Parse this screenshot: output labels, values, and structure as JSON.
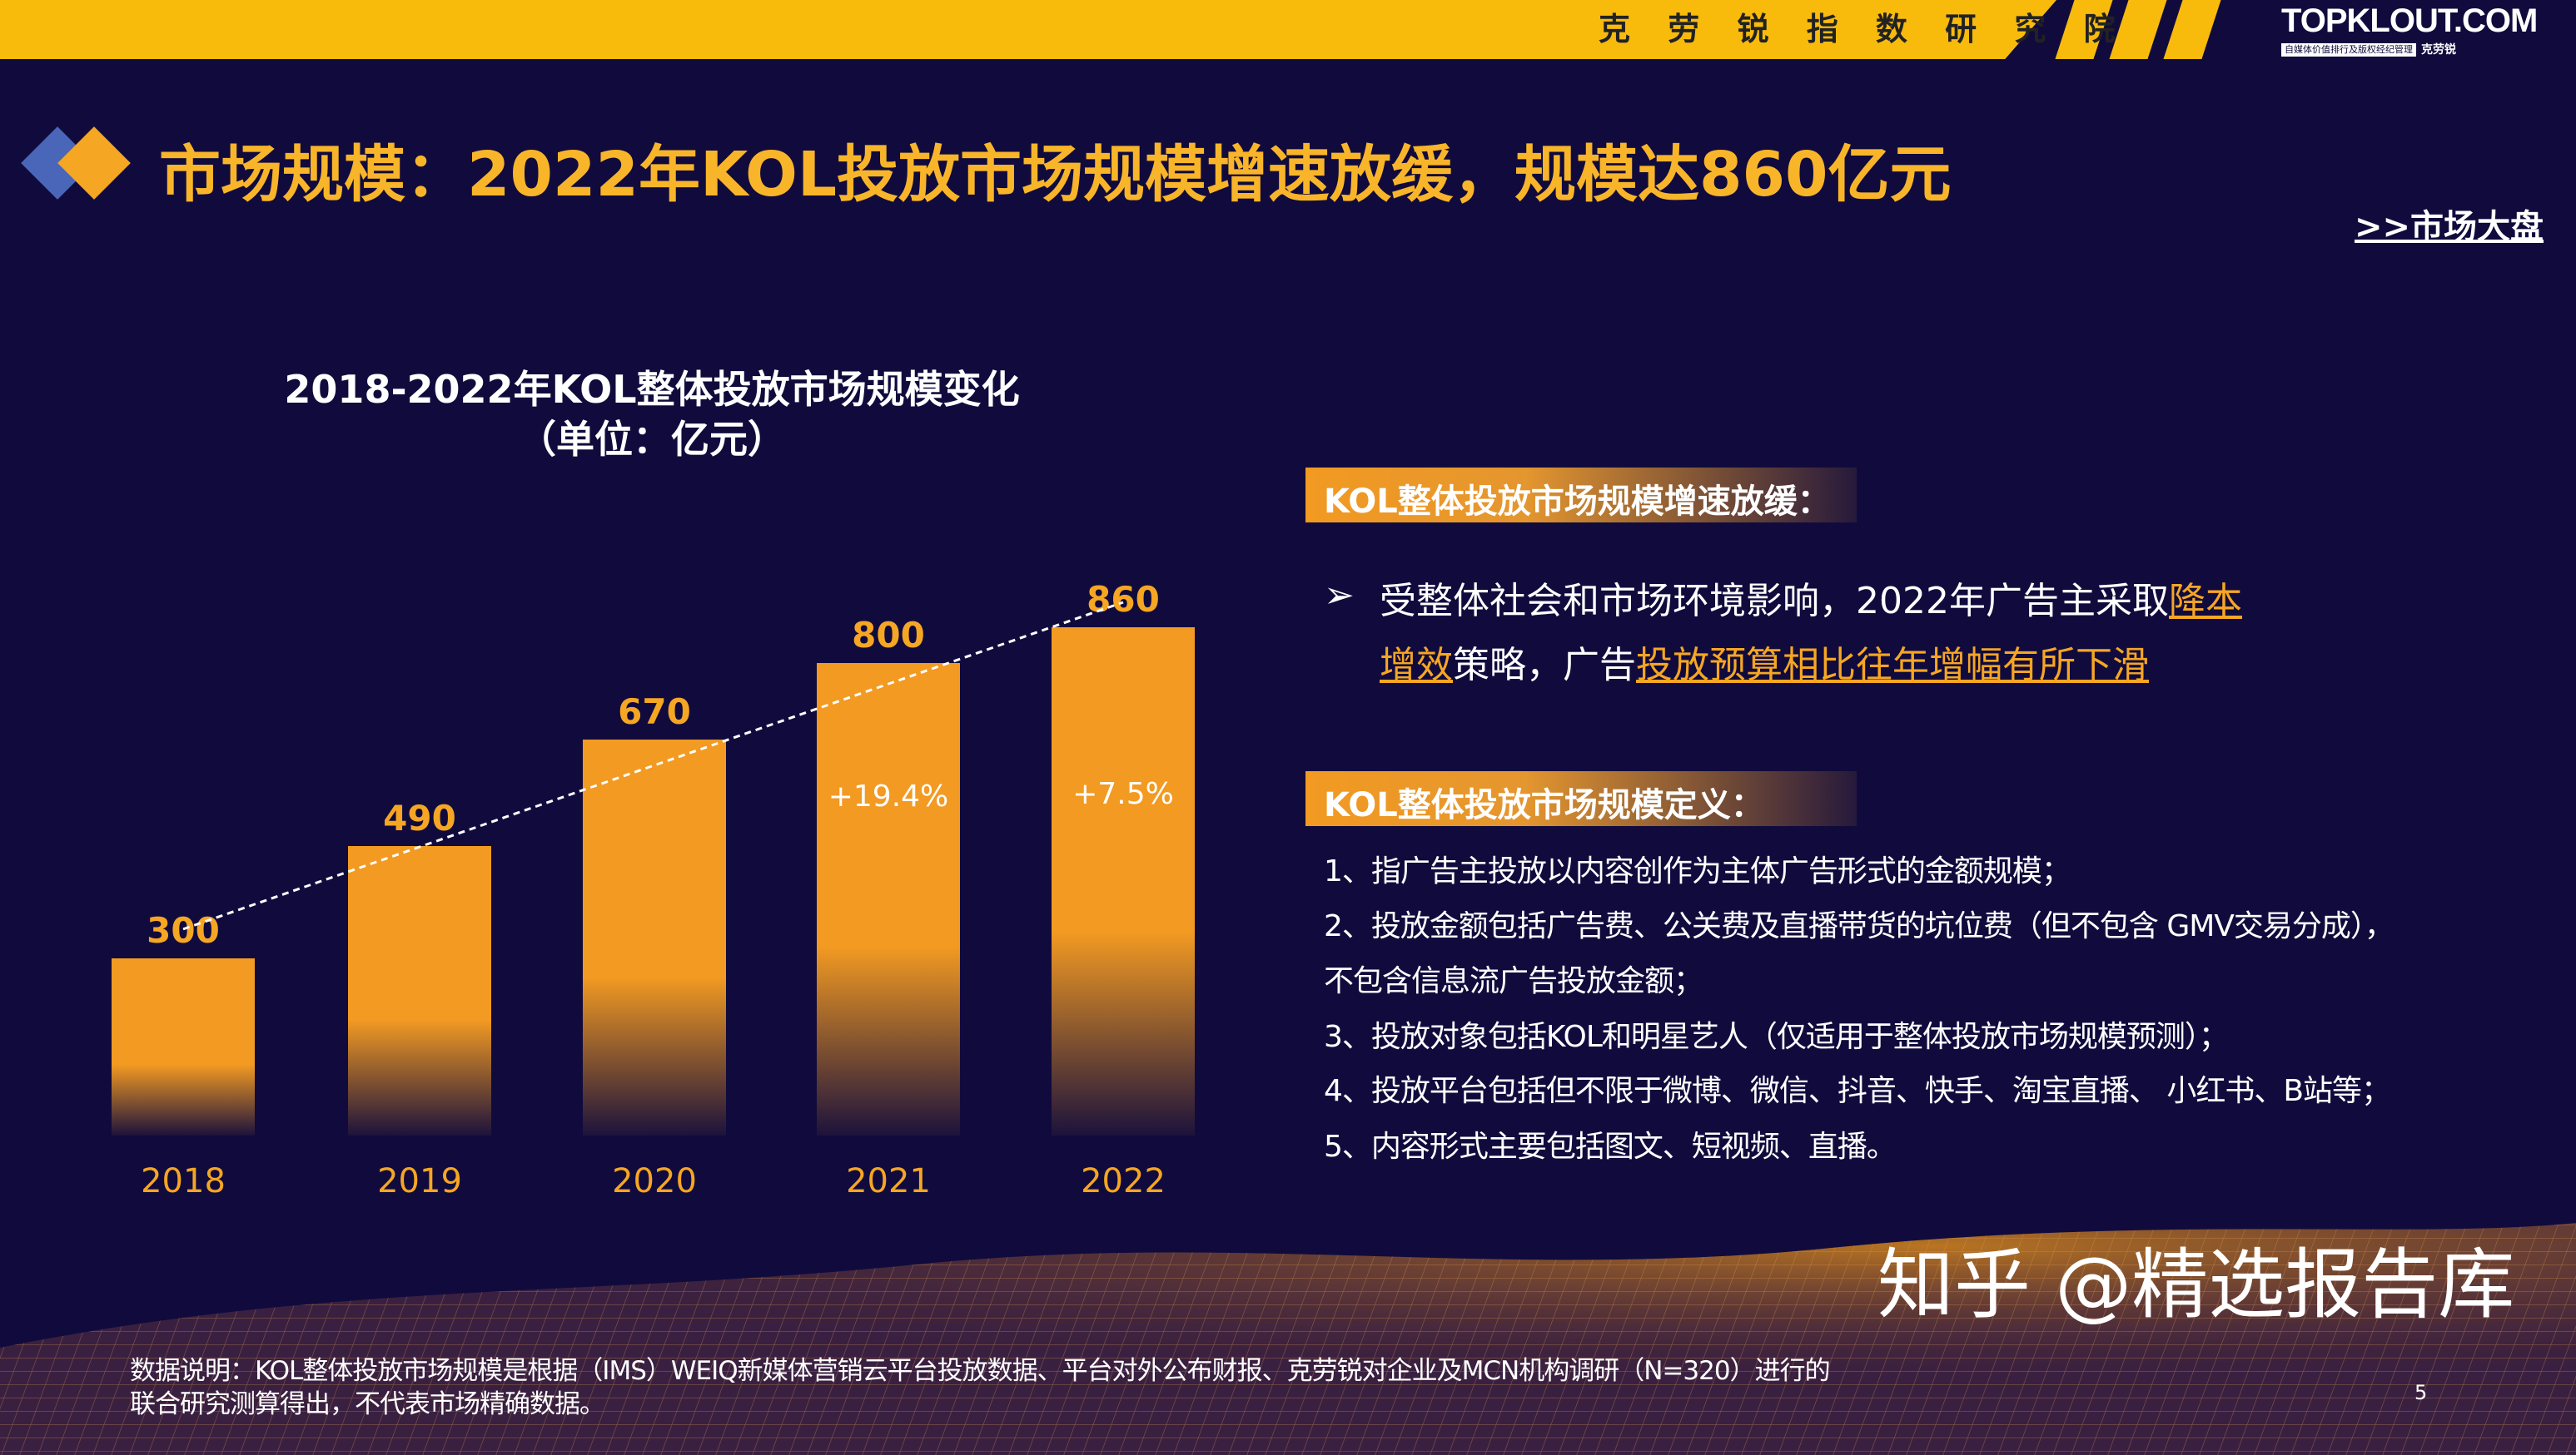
{
  "header": {
    "institute": "克 劳 锐 指 数 研 究 院",
    "logo": "TOPKLOUT.COM",
    "logo_tagline": "自媒体价值排行及版权经纪管理",
    "logo_cn": "克劳锐"
  },
  "title": "市场规模：2022年KOL投放市场规模增速放缓，规模达860亿元",
  "nav_link": ">>市场大盘",
  "chart_data": {
    "type": "bar",
    "title": "2018-2022年KOL整体投放市场规模变化",
    "subtitle": "（单位：亿元）",
    "categories": [
      "2018",
      "2019",
      "2020",
      "2021",
      "2022"
    ],
    "values": [
      300,
      490,
      670,
      800,
      860
    ],
    "growth_labels": [
      {
        "category": "2021",
        "label": "+19.4%"
      },
      {
        "category": "2022",
        "label": "+7.5%"
      }
    ],
    "trendline": "dashed",
    "ylim": [
      0,
      860
    ],
    "grid": false,
    "colors": {
      "bar": "#f29a22",
      "label": "#f5a623"
    }
  },
  "section1": {
    "heading": "KOL整体投放市场规模增速放缓：",
    "bullet": "➢",
    "text_a": "受整体社会和市场环境影响，2022年广告主采取",
    "hl1": "降本增效",
    "text_b": "策略，广告",
    "hl2": "投放预算相比往年增幅有所下滑"
  },
  "section2": {
    "heading": "KOL整体投放市场规模定义：",
    "lines": [
      "1、指广告主投放以内容创作为主体广告形式的金额规模；",
      "2、投放金额包括广告费、公关费及直播带货的坑位费（但不包含 GMV交易分成），",
      "不包含信息流广告投放金额；",
      "3、投放对象包括KOL和明星艺人（仅适用于整体投放市场规模预测）；",
      "4、投放平台包括但不限于微博、微信、抖音、快手、淘宝直播、 小红书、B站等；",
      "5、内容形式主要包括图文、短视频、直播。"
    ]
  },
  "footnote": "数据说明：KOL整体投放市场规模是根据（IMS）WEIQ新媒体营销云平台投放数据、平台对外公布财报、克劳锐对企业及MCN机构调研（N=320）进行的联合研究测算得出，不代表市场精确数据。",
  "watermark": "知乎 @精选报告库",
  "page_number": "5",
  "colors": {
    "background": "#110b3d",
    "accent": "#f8bb0c",
    "title": "#f9b52a"
  }
}
